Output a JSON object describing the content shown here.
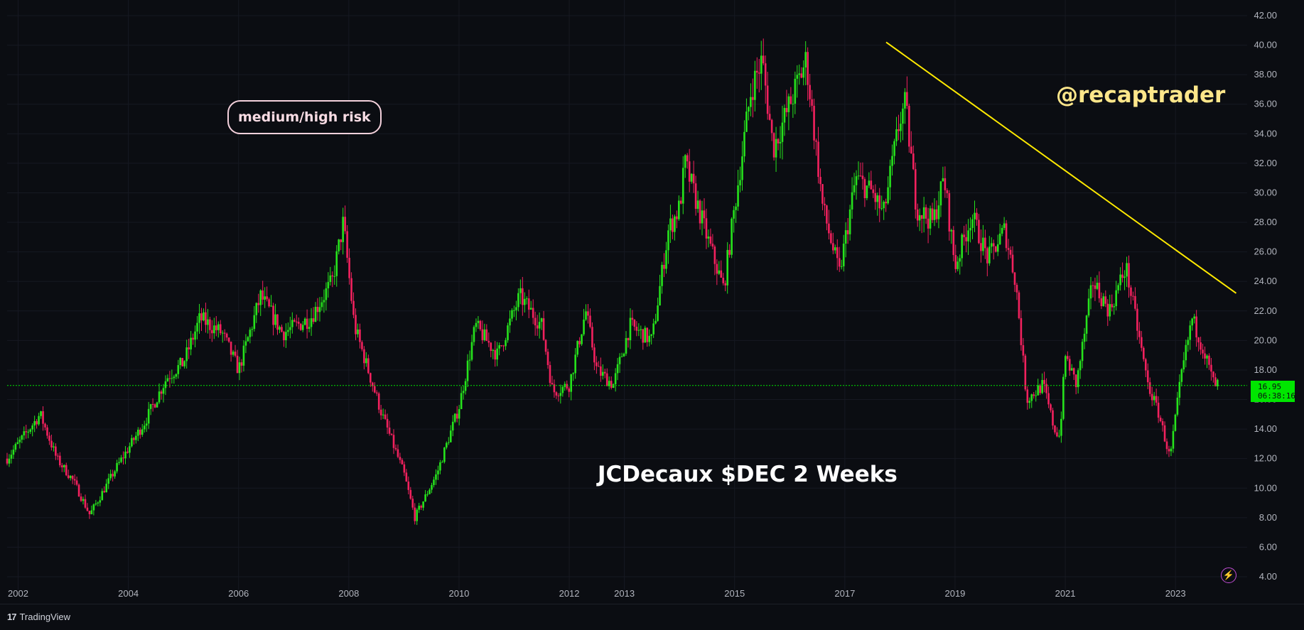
{
  "annotations": {
    "risk_label": "medium/high risk",
    "handle": "@recaptrader",
    "title": "JCDecaux $DEC 2 Weeks"
  },
  "price_tag": {
    "price": "16.95",
    "countdown": "06:38:16"
  },
  "footer": {
    "brand": "TradingView"
  },
  "icons": {
    "alert": "lightning-bolt-icon",
    "logo": "tradingview-logo-icon"
  },
  "colors": {
    "up": "#26e31c",
    "down": "#f2215e",
    "trendline": "#ffea00",
    "current_price": "#00e600",
    "background": "#0b0d12"
  },
  "chart_data": {
    "type": "candlestick",
    "symbol": "JCDecaux $DEC",
    "interval": "2 Weeks",
    "current_price": 16.95,
    "y_range": [
      4,
      42
    ],
    "y_ticks": [
      "42.00",
      "40.00",
      "38.00",
      "36.00",
      "34.00",
      "32.00",
      "30.00",
      "28.00",
      "26.00",
      "24.00",
      "22.00",
      "20.00",
      "18.00",
      "16.00",
      "14.00",
      "12.00",
      "10.00",
      "8.00",
      "6.00",
      "4.00"
    ],
    "x_ticks": [
      {
        "label": "2002",
        "t": 2002.0
      },
      {
        "label": "2004",
        "t": 2004.0
      },
      {
        "label": "2006",
        "t": 2006.0
      },
      {
        "label": "2008",
        "t": 2008.0
      },
      {
        "label": "2010",
        "t": 2010.0
      },
      {
        "label": "2012",
        "t": 2012.0
      },
      {
        "label": "2013",
        "t": 2013.0
      },
      {
        "label": "2015",
        "t": 2015.0
      },
      {
        "label": "2017",
        "t": 2017.0
      },
      {
        "label": "2019",
        "t": 2019.0
      },
      {
        "label": "2021",
        "t": 2021.0
      },
      {
        "label": "2023",
        "t": 2023.0
      }
    ],
    "price_path": [
      [
        2001.8,
        12.0
      ],
      [
        2002.4,
        15.0
      ],
      [
        2002.7,
        12.0
      ],
      [
        2003.0,
        10.5
      ],
      [
        2003.3,
        8.2
      ],
      [
        2003.8,
        11.5
      ],
      [
        2004.3,
        14.5
      ],
      [
        2004.7,
        17.5
      ],
      [
        2005.0,
        18.5
      ],
      [
        2005.3,
        21.5
      ],
      [
        2005.7,
        20.5
      ],
      [
        2006.0,
        18.0
      ],
      [
        2006.4,
        23.0
      ],
      [
        2006.8,
        20.5
      ],
      [
        2007.3,
        21.5
      ],
      [
        2007.7,
        24.0
      ],
      [
        2007.9,
        28.0
      ],
      [
        2008.1,
        21.0
      ],
      [
        2008.6,
        15.0
      ],
      [
        2009.0,
        11.0
      ],
      [
        2009.2,
        8.0
      ],
      [
        2009.6,
        11.0
      ],
      [
        2010.0,
        15.5
      ],
      [
        2010.3,
        21.0
      ],
      [
        2010.7,
        19.0
      ],
      [
        2011.1,
        23.0
      ],
      [
        2011.5,
        21.0
      ],
      [
        2011.7,
        16.5
      ],
      [
        2012.0,
        17.0
      ],
      [
        2012.3,
        22.0
      ],
      [
        2012.5,
        18.0
      ],
      [
        2012.8,
        17.0
      ],
      [
        2013.1,
        21.0
      ],
      [
        2013.5,
        20.0
      ],
      [
        2013.8,
        27.5
      ],
      [
        2014.0,
        29.0
      ],
      [
        2014.1,
        32.0
      ],
      [
        2014.5,
        27.0
      ],
      [
        2014.8,
        23.5
      ],
      [
        2015.0,
        29.0
      ],
      [
        2015.3,
        37.0
      ],
      [
        2015.5,
        39.0
      ],
      [
        2015.7,
        33.0
      ],
      [
        2016.1,
        37.0
      ],
      [
        2016.3,
        39.0
      ],
      [
        2016.6,
        29.0
      ],
      [
        2016.9,
        24.5
      ],
      [
        2017.2,
        31.0
      ],
      [
        2017.5,
        30.0
      ],
      [
        2017.7,
        28.5
      ],
      [
        2018.0,
        35.0
      ],
      [
        2018.1,
        36.0
      ],
      [
        2018.3,
        29.0
      ],
      [
        2018.6,
        28.0
      ],
      [
        2018.8,
        31.0
      ],
      [
        2019.0,
        25.0
      ],
      [
        2019.3,
        28.5
      ],
      [
        2019.6,
        25.5
      ],
      [
        2019.9,
        27.5
      ],
      [
        2020.1,
        24.0
      ],
      [
        2020.3,
        16.0
      ],
      [
        2020.6,
        17.0
      ],
      [
        2020.8,
        14.0
      ],
      [
        2020.9,
        13.5
      ],
      [
        2021.0,
        19.0
      ],
      [
        2021.2,
        17.0
      ],
      [
        2021.5,
        24.0
      ],
      [
        2021.8,
        22.0
      ],
      [
        2022.1,
        25.0
      ],
      [
        2022.3,
        21.0
      ],
      [
        2022.5,
        17.0
      ],
      [
        2022.7,
        15.0
      ],
      [
        2022.9,
        12.0
      ],
      [
        2023.1,
        17.5
      ],
      [
        2023.3,
        21.5
      ],
      [
        2023.5,
        19.5
      ],
      [
        2023.7,
        17.0
      ],
      [
        2023.8,
        16.95
      ]
    ],
    "trendline": {
      "start": [
        2017.75,
        40.2
      ],
      "end": [
        2024.1,
        23.2
      ]
    },
    "price_line": 16.95
  }
}
